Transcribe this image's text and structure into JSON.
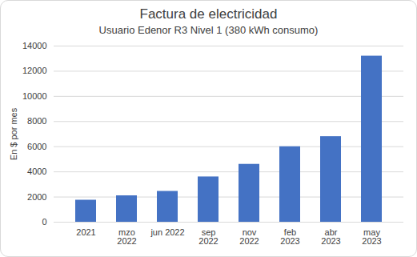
{
  "chart_data": {
    "type": "bar",
    "title": "Factura de electricidad",
    "subtitle": "Usuario Edenor R3 Nivel 1 (380 kWh consumo)",
    "ylabel": "En $ por mes",
    "categories": [
      "2021",
      "mzo\n2022",
      "jun 2022",
      "sep\n2022",
      "nov\n2022",
      "feb\n2023",
      "abr\n2023",
      "may\n2023"
    ],
    "values": [
      1750,
      2100,
      2450,
      3600,
      4600,
      6000,
      6800,
      13200
    ],
    "color": "#4472c4",
    "ylim": [
      0,
      14000
    ],
    "yticks": [
      0,
      2000,
      4000,
      6000,
      8000,
      10000,
      12000,
      14000
    ],
    "grid": true
  }
}
